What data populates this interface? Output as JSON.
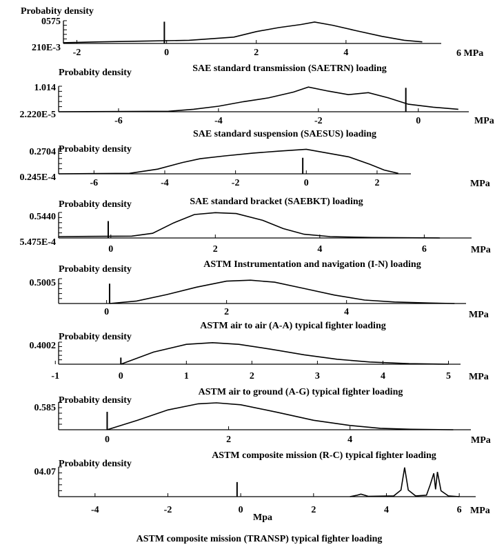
{
  "chart_data": [
    {
      "type": "line",
      "ylabel": "Probabity density",
      "ymax_label": "0575",
      "ymin_label": "210E-3",
      "x_unit": "6 MPa",
      "title": "SAE standard transmission (SAETRN) loading",
      "xticks": [
        {
          "value": -2,
          "label": "-2"
        },
        {
          "value": 0,
          "label": "0"
        },
        {
          "value": 2,
          "label": "2"
        },
        {
          "value": 4,
          "label": "4"
        }
      ],
      "xlim": [
        -2.3,
        6.0
      ],
      "ylim": [
        0,
        0.575
      ],
      "spike": {
        "x": -0.05,
        "y": 0.55
      },
      "curve": [
        [
          -2.3,
          0.02
        ],
        [
          -1.5,
          0.04
        ],
        [
          -0.5,
          0.06
        ],
        [
          0.5,
          0.08
        ],
        [
          1.5,
          0.16
        ],
        [
          2.0,
          0.3
        ],
        [
          2.5,
          0.4
        ],
        [
          3.0,
          0.48
        ],
        [
          3.3,
          0.54
        ],
        [
          3.7,
          0.46
        ],
        [
          4.2,
          0.33
        ],
        [
          4.8,
          0.18
        ],
        [
          5.3,
          0.08
        ],
        [
          5.7,
          0.04
        ]
      ]
    },
    {
      "type": "line",
      "ylabel": "Probabity density",
      "ymax_label": "1.014",
      "ymin_label": "2.220E-5",
      "x_unit": "MPa",
      "title": "SAE standard suspension (SAESUS) loading",
      "xticks": [
        {
          "value": -6,
          "label": "-6"
        },
        {
          "value": -4,
          "label": "-4"
        },
        {
          "value": -2,
          "label": "-2"
        },
        {
          "value": 0,
          "label": "0"
        }
      ],
      "xlim": [
        -7.2,
        0.9
      ],
      "ylim": [
        0,
        1.014
      ],
      "spike": {
        "x": -0.25,
        "y": 0.95
      },
      "curve": [
        [
          -7.2,
          0.0
        ],
        [
          -5.0,
          0.02
        ],
        [
          -4.5,
          0.1
        ],
        [
          -4.0,
          0.22
        ],
        [
          -3.5,
          0.4
        ],
        [
          -3.0,
          0.55
        ],
        [
          -2.5,
          0.78
        ],
        [
          -2.2,
          0.98
        ],
        [
          -1.8,
          0.82
        ],
        [
          -1.4,
          0.68
        ],
        [
          -1.0,
          0.76
        ],
        [
          -0.6,
          0.55
        ],
        [
          -0.2,
          0.3
        ],
        [
          0.3,
          0.18
        ],
        [
          0.8,
          0.1
        ]
      ]
    },
    {
      "type": "line",
      "ylabel": "Probabity density",
      "ymax_label": "0.2704",
      "ymin_label": "0.245E-4",
      "x_unit": "MPa",
      "title": "SAE standard bracket (SAEBKT) loading",
      "xticks": [
        {
          "value": -6,
          "label": "-6"
        },
        {
          "value": -4,
          "label": "-4"
        },
        {
          "value": -2,
          "label": "-2"
        },
        {
          "value": 0,
          "label": "0"
        },
        {
          "value": 2,
          "label": "2"
        }
      ],
      "xlim": [
        -7.0,
        2.8
      ],
      "ylim": [
        0,
        0.2704
      ],
      "spike": {
        "x": -0.1,
        "y": 0.17
      },
      "curve": [
        [
          -7.0,
          0.0
        ],
        [
          -5.0,
          0.005
        ],
        [
          -4.2,
          0.05
        ],
        [
          -3.5,
          0.12
        ],
        [
          -3.0,
          0.16
        ],
        [
          -2.3,
          0.19
        ],
        [
          -1.5,
          0.22
        ],
        [
          -0.8,
          0.24
        ],
        [
          0.0,
          0.26
        ],
        [
          0.6,
          0.22
        ],
        [
          1.2,
          0.18
        ],
        [
          1.8,
          0.1
        ],
        [
          2.2,
          0.04
        ],
        [
          2.6,
          0.005
        ]
      ]
    },
    {
      "type": "line",
      "ylabel": "Probabity density",
      "ymax_label": "0.5440",
      "ymin_label": "5.475E-4",
      "x_unit": "MPa",
      "title": "ASTM Instrumentation and navigation (I-N) loading",
      "xticks": [
        {
          "value": 0,
          "label": "0"
        },
        {
          "value": 2,
          "label": "2"
        },
        {
          "value": 4,
          "label": "4"
        },
        {
          "value": 6,
          "label": "6"
        }
      ],
      "xlim": [
        -1.0,
        6.8
      ],
      "ylim": [
        0,
        0.544
      ],
      "spike": {
        "x": -0.05,
        "y": 0.36
      },
      "curve": [
        [
          -1.0,
          0.03
        ],
        [
          0.4,
          0.04
        ],
        [
          0.8,
          0.1
        ],
        [
          1.2,
          0.32
        ],
        [
          1.6,
          0.5
        ],
        [
          2.0,
          0.54
        ],
        [
          2.4,
          0.52
        ],
        [
          2.9,
          0.38
        ],
        [
          3.3,
          0.2
        ],
        [
          3.7,
          0.08
        ],
        [
          4.2,
          0.03
        ],
        [
          5.0,
          0.01
        ],
        [
          6.3,
          0.0
        ]
      ]
    },
    {
      "type": "line",
      "ylabel": "Probabity density",
      "ymax_label": "0.5005",
      "ymin_label": "",
      "x_unit": "MPa",
      "title": "ASTM air to air (A-A) typical fighter loading",
      "xticks": [
        {
          "value": 0,
          "label": "0"
        },
        {
          "value": 2,
          "label": "2"
        },
        {
          "value": 4,
          "label": "4"
        }
      ],
      "xlim": [
        -0.8,
        5.9
      ],
      "ylim": [
        0,
        0.5005
      ],
      "spike": {
        "x": 0.05,
        "y": 0.4
      },
      "curve": [
        [
          0.05,
          0.0
        ],
        [
          0.5,
          0.05
        ],
        [
          1.0,
          0.18
        ],
        [
          1.5,
          0.33
        ],
        [
          2.0,
          0.45
        ],
        [
          2.4,
          0.47
        ],
        [
          2.8,
          0.43
        ],
        [
          3.3,
          0.3
        ],
        [
          3.8,
          0.17
        ],
        [
          4.3,
          0.07
        ],
        [
          4.8,
          0.03
        ],
        [
          5.4,
          0.01
        ],
        [
          5.8,
          0.0
        ]
      ]
    },
    {
      "type": "line",
      "ylabel": "Probabity density",
      "ymax_label": "0.4002",
      "ymin_label": "",
      "x_unit": "MPa",
      "title": "ASTM air to ground (A-G) typical fighter loading",
      "xticks": [
        {
          "value": -1,
          "label": "-1"
        },
        {
          "value": 0,
          "label": "0"
        },
        {
          "value": 1,
          "label": "1"
        },
        {
          "value": 2,
          "label": "2"
        },
        {
          "value": 3,
          "label": "3"
        },
        {
          "value": 4,
          "label": "4"
        },
        {
          "value": 5,
          "label": "5"
        }
      ],
      "xlim": [
        -0.95,
        5.1
      ],
      "ylim": [
        0,
        0.4002
      ],
      "spike": {
        "x": 0.0,
        "y": 0.12
      },
      "curve": [
        [
          0.0,
          0.0
        ],
        [
          0.5,
          0.22
        ],
        [
          1.0,
          0.36
        ],
        [
          1.4,
          0.39
        ],
        [
          1.8,
          0.36
        ],
        [
          2.3,
          0.27
        ],
        [
          2.8,
          0.17
        ],
        [
          3.3,
          0.09
        ],
        [
          3.8,
          0.04
        ],
        [
          4.4,
          0.01
        ],
        [
          5.0,
          0.0
        ]
      ]
    },
    {
      "type": "line",
      "ylabel": "Probabity density",
      "ymax_label": "0.585",
      "ymin_label": "",
      "x_unit": "MPa",
      "title": "ASTM composite mission (R-C) typical fighter loading",
      "xticks": [
        {
          "value": 0,
          "label": "0"
        },
        {
          "value": 2,
          "label": "2"
        },
        {
          "value": 4,
          "label": "4"
        }
      ],
      "xlim": [
        -0.8,
        5.9
      ],
      "ylim": [
        0,
        0.585
      ],
      "spike": {
        "x": 0.0,
        "y": 0.38
      },
      "curve": [
        [
          0.0,
          0.0
        ],
        [
          0.5,
          0.2
        ],
        [
          1.0,
          0.42
        ],
        [
          1.5,
          0.55
        ],
        [
          1.8,
          0.57
        ],
        [
          2.2,
          0.53
        ],
        [
          2.8,
          0.37
        ],
        [
          3.4,
          0.2
        ],
        [
          4.0,
          0.09
        ],
        [
          4.5,
          0.03
        ],
        [
          5.0,
          0.01
        ],
        [
          5.7,
          0.0
        ]
      ]
    },
    {
      "type": "line",
      "ylabel": "Probabity density",
      "ymax_label": "04.07",
      "ymin_label": "",
      "x_unit": "MPa",
      "xlabel": "Mpa",
      "title": "ASTM composite mission (TRANSP) typical fighter loading",
      "xticks": [
        {
          "value": -4,
          "label": "-4"
        },
        {
          "value": -2,
          "label": "-2"
        },
        {
          "value": 0,
          "label": "0"
        },
        {
          "value": 2,
          "label": "2"
        },
        {
          "value": 4,
          "label": "4"
        },
        {
          "value": 6,
          "label": "6"
        }
      ],
      "xlim": [
        -5.0,
        6.3
      ],
      "ylim": [
        0,
        4.07
      ],
      "spike": {
        "x": -0.1,
        "y": 2.0
      },
      "curve": [
        [
          3.0,
          0.0
        ],
        [
          3.2,
          0.2
        ],
        [
          3.3,
          0.35
        ],
        [
          3.4,
          0.2
        ],
        [
          3.5,
          0.05
        ],
        [
          4.2,
          0.1
        ],
        [
          4.4,
          0.9
        ],
        [
          4.5,
          4.0
        ],
        [
          4.6,
          0.9
        ],
        [
          4.8,
          0.1
        ],
        [
          5.1,
          0.2
        ],
        [
          5.2,
          1.6
        ],
        [
          5.3,
          3.2
        ],
        [
          5.35,
          1.0
        ],
        [
          5.4,
          3.4
        ],
        [
          5.5,
          0.8
        ],
        [
          5.7,
          0.1
        ],
        [
          6.0,
          0.0
        ]
      ]
    }
  ]
}
